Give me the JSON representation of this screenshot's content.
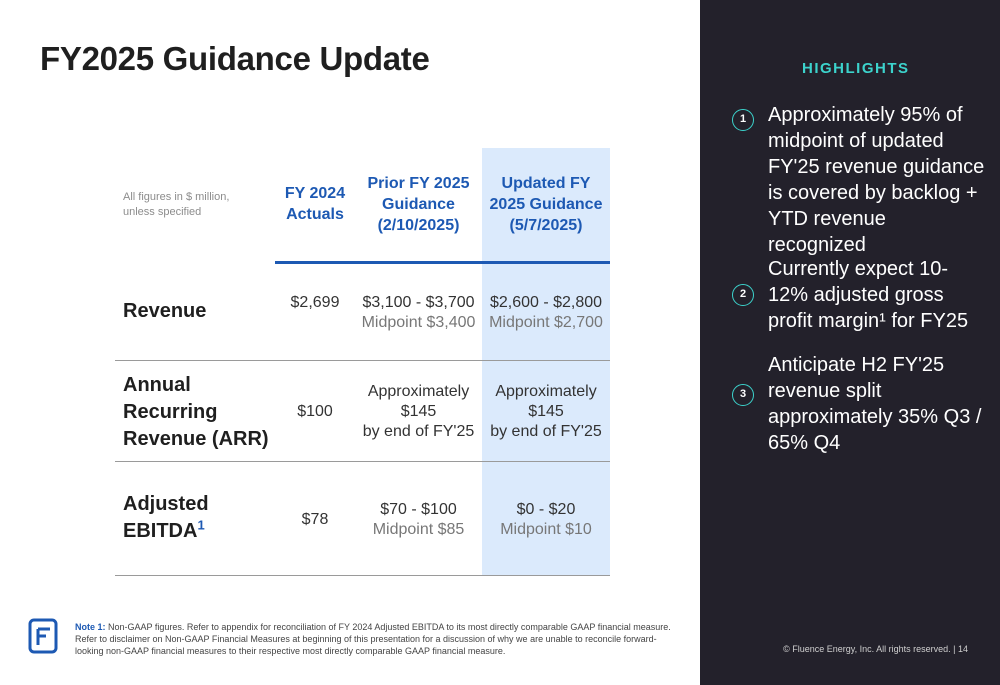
{
  "title": "FY2025 Guidance Update",
  "table": {
    "units_note": "All figures in $ million, unless specified",
    "columns": {
      "fy2024": [
        "FY 2024",
        "Actuals"
      ],
      "prior": [
        "Prior FY 2025",
        "Guidance",
        "(2/10/2025)"
      ],
      "updated": [
        "Updated FY",
        "2025 Guidance",
        "(5/7/2025)"
      ]
    },
    "rows": {
      "revenue": {
        "label": "Revenue",
        "fy2024": "$2,699",
        "prior": [
          "$3,100 - $3,700",
          "Midpoint $3,400"
        ],
        "updated": [
          "$2,600 - $2,800",
          "Midpoint $2,700"
        ]
      },
      "arr": {
        "label": [
          "Annual",
          "Recurring",
          "Revenue (ARR)"
        ],
        "fy2024": "$100",
        "prior": [
          "Approximately",
          "$145",
          "by end of FY'25"
        ],
        "updated": [
          "Approximately",
          "$145",
          "by end of FY'25"
        ]
      },
      "ebitda": {
        "label": [
          "Adjusted",
          "EBITDA"
        ],
        "footnote": "1",
        "fy2024": "$78",
        "prior": [
          "$70 - $100",
          "Midpoint $85"
        ],
        "updated": [
          "$0 - $20",
          "Midpoint $10"
        ]
      }
    }
  },
  "note": {
    "label": "Note 1:",
    "text": "Non-GAAP figures. Refer to appendix for reconciliation of FY 2024 Adjusted EBITDA to its most directly comparable GAAP financial measure. Refer to disclaimer on Non-GAAP Financial Measures at beginning of this presentation for a discussion of why we are unable to reconcile forward-looking non-GAAP financial measures to their respective most directly comparable GAAP financial measure."
  },
  "highlights": {
    "title": "HIGHLIGHTS",
    "items": [
      {
        "num": "1",
        "text": "Approximately 95% of midpoint of updated FY'25 revenue guidance is covered by backlog + YTD revenue recognized"
      },
      {
        "num": "2",
        "text": "Currently expect 10-12% adjusted gross profit margin¹ for FY25"
      },
      {
        "num": "3",
        "text": "Anticipate H2 FY'25 revenue split approximately 35% Q3 / 65% Q4"
      }
    ]
  },
  "footer": {
    "copyright": "© Fluence Energy, Inc. All rights reserved. | 14"
  },
  "colors": {
    "accent_blue": "#1d59b3",
    "highlight_teal": "#3cd3cc",
    "panel_dark": "#23212b",
    "updated_col_bg": "#dbeafc"
  },
  "icons": {
    "logo": "fluence-logo-icon"
  }
}
